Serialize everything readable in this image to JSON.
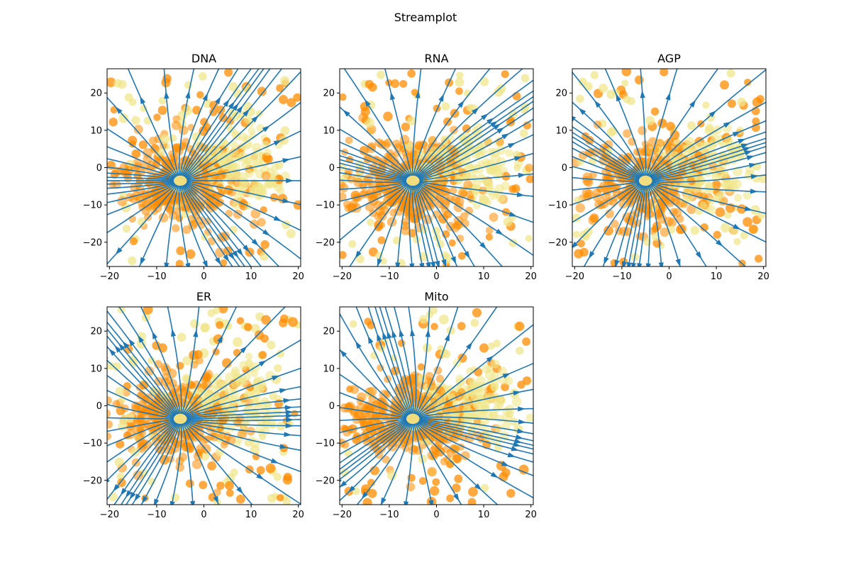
{
  "chart_data": {
    "type": "streamplot",
    "title": "Streamplot",
    "xlim": [
      -20.5,
      20.5
    ],
    "ylim": [
      -26.5,
      26.5
    ],
    "x_ticks": [
      -20,
      -10,
      0,
      10,
      20
    ],
    "y_ticks": [
      -20,
      -10,
      0,
      10,
      20
    ],
    "x_tick_labels": [
      "−20",
      "−10",
      "0",
      "10",
      "20"
    ],
    "y_tick_labels": [
      "−20",
      "−10",
      "0",
      "10",
      "20"
    ],
    "flow_center": [
      -5,
      -3.5
    ],
    "colors": {
      "streamline": "#1f77b4",
      "point_dark": "#ff8c00",
      "point_light": "#f0e68c"
    },
    "panels": [
      {
        "title": "DNA"
      },
      {
        "title": "RNA"
      },
      {
        "title": "AGP"
      },
      {
        "title": "ER"
      },
      {
        "title": "Mito"
      }
    ]
  }
}
